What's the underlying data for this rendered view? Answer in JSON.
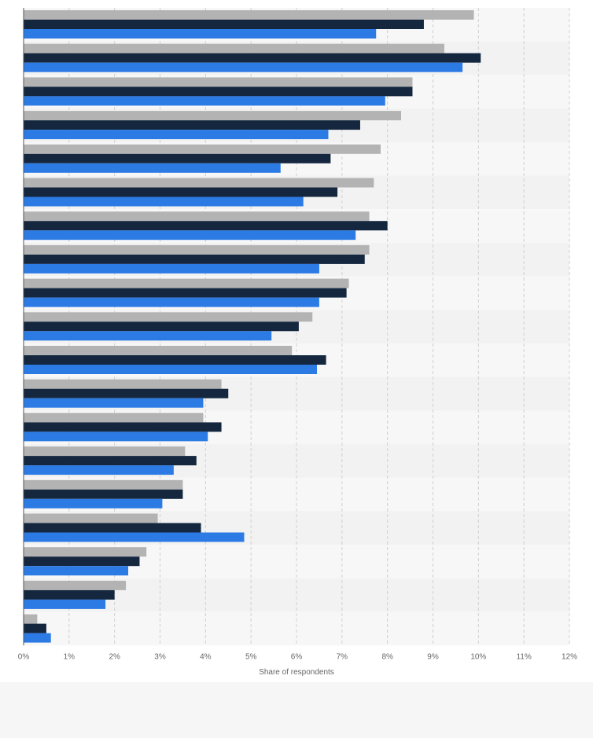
{
  "chart_data": {
    "type": "bar",
    "orientation": "horizontal",
    "grid": "vertical dashed gridlines",
    "legend": "none",
    "xlabel": "Share of respondents",
    "ylabel": "",
    "title": "",
    "xlim": [
      0,
      12
    ],
    "x_ticks": [
      "0%",
      "1%",
      "2%",
      "3%",
      "4%",
      "5%",
      "6%",
      "7%",
      "8%",
      "9%",
      "10%",
      "11%",
      "12%"
    ],
    "categories": [
      "",
      "",
      "",
      "",
      "",
      "",
      "",
      "",
      "",
      "",
      "",
      "",
      "",
      "",
      "",
      "",
      "",
      "",
      ""
    ],
    "series": [
      {
        "color": "#b3b3b3",
        "values": [
          9.9,
          9.25,
          8.55,
          8.3,
          7.85,
          7.7,
          7.6,
          7.6,
          7.15,
          6.35,
          5.9,
          4.35,
          3.95,
          3.55,
          3.5,
          2.95,
          2.7,
          2.25,
          0.3
        ]
      },
      {
        "color": "#14273f",
        "values": [
          8.8,
          10.05,
          8.55,
          7.4,
          6.75,
          6.9,
          8.0,
          7.5,
          7.1,
          6.05,
          6.65,
          4.5,
          4.35,
          3.8,
          3.5,
          3.9,
          2.55,
          2.0,
          0.5
        ]
      },
      {
        "color": "#2c7be5",
        "values": [
          7.75,
          9.65,
          7.95,
          6.7,
          5.65,
          6.15,
          7.3,
          6.5,
          6.5,
          5.45,
          6.45,
          3.95,
          4.05,
          3.3,
          3.05,
          4.85,
          2.3,
          1.8,
          0.6
        ]
      }
    ]
  },
  "colors": {
    "band_light": "#f7f7f7",
    "band_dark": "#f2f2f2",
    "grid": "#d0d0d0",
    "axis": "#555555",
    "footer": "#f6f6f6"
  }
}
